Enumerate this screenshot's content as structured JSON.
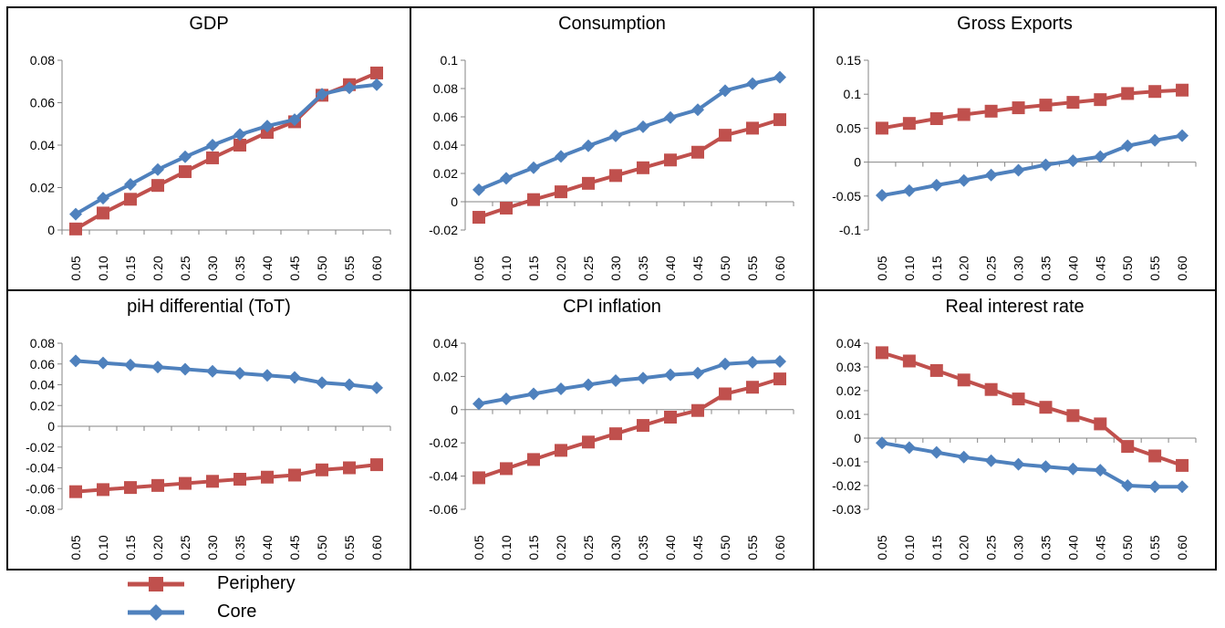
{
  "categories": [
    "0.05",
    "0.10",
    "0.15",
    "0.20",
    "0.25",
    "0.30",
    "0.35",
    "0.40",
    "0.45",
    "0.50",
    "0.55",
    "0.60"
  ],
  "colors": {
    "Periphery": "#C0504D",
    "Core": "#4F81BD"
  },
  "legend": [
    {
      "name": "Periphery",
      "marker": "square"
    },
    {
      "name": "Core",
      "marker": "diamond"
    }
  ],
  "chart_data": [
    {
      "type": "line",
      "title": "GDP",
      "ylim": [
        0,
        0.08
      ],
      "yticks": [
        "0",
        "0.02",
        "0.04",
        "0.06",
        "0.08"
      ],
      "series": [
        {
          "name": "Periphery",
          "values": [
            0.0005,
            0.008,
            0.0145,
            0.021,
            0.0275,
            0.034,
            0.04,
            0.046,
            0.051,
            0.0635,
            0.0685,
            0.074
          ]
        },
        {
          "name": "Core",
          "values": [
            0.0075,
            0.015,
            0.0215,
            0.0285,
            0.0345,
            0.04,
            0.045,
            0.049,
            0.052,
            0.064,
            0.067,
            0.0685
          ]
        }
      ]
    },
    {
      "type": "line",
      "title": "Consumption",
      "ylim": [
        -0.02,
        0.1
      ],
      "yticks": [
        "-0.02",
        "0",
        "0.02",
        "0.04",
        "0.06",
        "0.08",
        "0.1"
      ],
      "series": [
        {
          "name": "Periphery",
          "values": [
            -0.011,
            -0.0045,
            0.0015,
            0.007,
            0.013,
            0.0185,
            0.024,
            0.0295,
            0.035,
            0.047,
            0.052,
            0.058
          ]
        },
        {
          "name": "Core",
          "values": [
            0.0085,
            0.0165,
            0.024,
            0.032,
            0.0395,
            0.0465,
            0.053,
            0.0595,
            0.065,
            0.0785,
            0.0835,
            0.088
          ]
        }
      ]
    },
    {
      "type": "line",
      "title": "Gross Exports",
      "ylim": [
        -0.1,
        0.15
      ],
      "yticks": [
        "-0.1",
        "-0.05",
        "0",
        "0.05",
        "0.1",
        "0.15"
      ],
      "series": [
        {
          "name": "Periphery",
          "values": [
            0.05,
            0.057,
            0.064,
            0.07,
            0.075,
            0.08,
            0.084,
            0.088,
            0.092,
            0.101,
            0.104,
            0.106
          ]
        },
        {
          "name": "Core",
          "values": [
            -0.049,
            -0.042,
            -0.034,
            -0.027,
            -0.019,
            -0.012,
            -0.004,
            0.002,
            0.008,
            0.024,
            0.032,
            0.039
          ]
        }
      ]
    },
    {
      "type": "line",
      "title": "piH differential (ToT)",
      "ylim": [
        -0.08,
        0.08
      ],
      "yticks": [
        "-0.08",
        "-0.06",
        "-0.04",
        "-0.02",
        "0",
        "0.02",
        "0.04",
        "0.06",
        "0.08"
      ],
      "series": [
        {
          "name": "Periphery",
          "values": [
            -0.063,
            -0.061,
            -0.059,
            -0.057,
            -0.055,
            -0.053,
            -0.051,
            -0.049,
            -0.047,
            -0.042,
            -0.04,
            -0.037
          ]
        },
        {
          "name": "Core",
          "values": [
            0.063,
            0.061,
            0.059,
            0.057,
            0.055,
            0.053,
            0.051,
            0.049,
            0.047,
            0.042,
            0.04,
            0.037
          ]
        }
      ]
    },
    {
      "type": "line",
      "title": "CPI inflation",
      "ylim": [
        -0.06,
        0.04
      ],
      "yticks": [
        "-0.06",
        "-0.04",
        "-0.02",
        "0",
        "0.02",
        "0.04"
      ],
      "series": [
        {
          "name": "Periphery",
          "values": [
            -0.041,
            -0.0355,
            -0.03,
            -0.0245,
            -0.0195,
            -0.0145,
            -0.0095,
            -0.0045,
            -0.0005,
            0.0095,
            0.0135,
            0.0185
          ]
        },
        {
          "name": "Core",
          "values": [
            0.0035,
            0.0065,
            0.0095,
            0.0125,
            0.015,
            0.0175,
            0.019,
            0.021,
            0.022,
            0.0275,
            0.0285,
            0.029
          ]
        }
      ]
    },
    {
      "type": "line",
      "title": "Real interest rate",
      "ylim": [
        -0.03,
        0.04
      ],
      "yticks": [
        "-0.03",
        "-0.02",
        "-0.01",
        "0",
        "0.01",
        "0.02",
        "0.03",
        "0.04"
      ],
      "series": [
        {
          "name": "Periphery",
          "values": [
            0.036,
            0.0325,
            0.0285,
            0.0245,
            0.0205,
            0.0165,
            0.013,
            0.0095,
            0.006,
            -0.0035,
            -0.0075,
            -0.0115
          ]
        },
        {
          "name": "Core",
          "values": [
            -0.002,
            -0.004,
            -0.006,
            -0.008,
            -0.0095,
            -0.011,
            -0.012,
            -0.013,
            -0.0135,
            -0.02,
            -0.0205,
            -0.0205
          ]
        }
      ]
    }
  ]
}
